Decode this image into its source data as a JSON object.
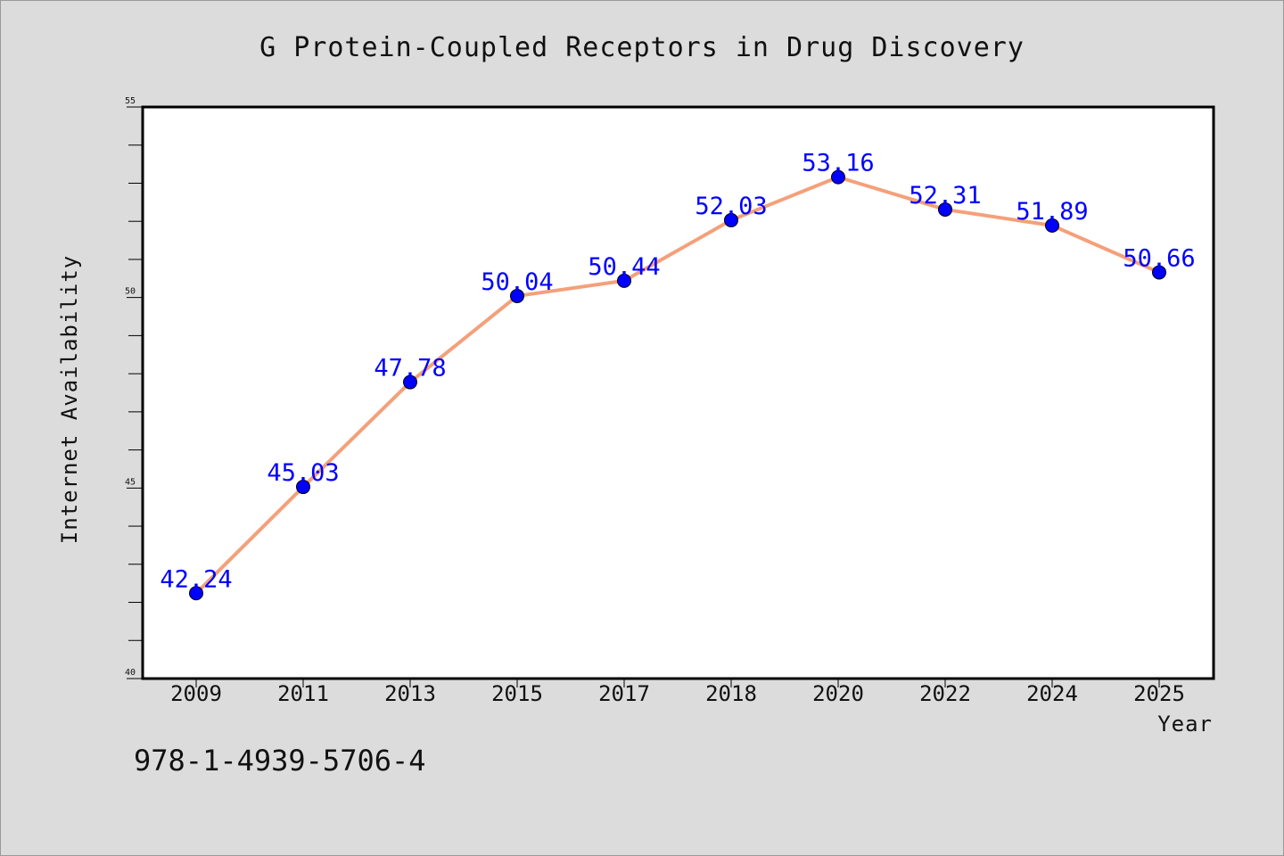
{
  "chart_data": {
    "type": "line",
    "title": "G Protein-Coupled Receptors in Drug Discovery",
    "xlabel": "Year",
    "ylabel": "Internet Availability",
    "categories": [
      "2009",
      "2011",
      "2013",
      "2015",
      "2017",
      "2018",
      "2020",
      "2022",
      "2024",
      "2025"
    ],
    "series": [
      {
        "values": [
          42.24,
          45.03,
          47.78,
          50.04,
          50.44,
          52.03,
          53.16,
          52.31,
          51.89,
          50.66
        ],
        "line_color": "#f4a07a",
        "marker_color": "#0000ff"
      }
    ],
    "data_labels": [
      "42.24",
      "45.03",
      "47.78",
      "50.04",
      "50.44",
      "52.03",
      "53.16",
      "52.31",
      "51.89",
      "50.66"
    ],
    "ylim": [
      40,
      55
    ],
    "yticks": [
      "40",
      "45",
      "50",
      "55"
    ],
    "grid": false,
    "legend": "none",
    "label_color": "#0000ff"
  },
  "footer": {
    "isbn": "978-1-4939-5706-4"
  },
  "colors": {
    "background": "#dcdcdc",
    "plot_background": "#ffffff"
  }
}
